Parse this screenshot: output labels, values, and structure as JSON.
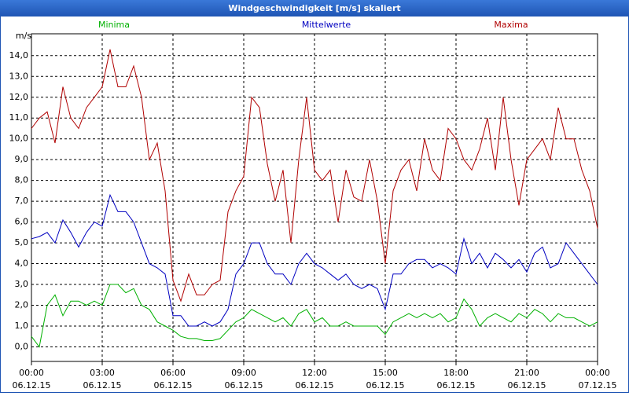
{
  "chart_data": {
    "type": "line",
    "title": "Windgeschwindigkeit [m/s] skaliert",
    "y_label": "m/s",
    "x": [
      0,
      20,
      40,
      60,
      80,
      100,
      120,
      140,
      160,
      180,
      200,
      220,
      240,
      260,
      280,
      300,
      320,
      340,
      360,
      380,
      400,
      420,
      440,
      460,
      480,
      500,
      520,
      540,
      560,
      580,
      600,
      620,
      640,
      660,
      680,
      700,
      720,
      740,
      760,
      780,
      800,
      820,
      840,
      860,
      880,
      900,
      920,
      940,
      960,
      980,
      1000,
      1020,
      1040,
      1060,
      1080,
      1100,
      1120,
      1140,
      1160,
      1180,
      1200,
      1220,
      1240,
      1260,
      1280,
      1300,
      1320,
      1340,
      1360,
      1380,
      1400,
      1420,
      1440
    ],
    "xlim": [
      0,
      1440
    ],
    "xticks": [
      {
        "value": 0,
        "label": "00:00"
      },
      {
        "value": 180,
        "label": "03:00"
      },
      {
        "value": 360,
        "label": "06:00"
      },
      {
        "value": 540,
        "label": "09:00"
      },
      {
        "value": 720,
        "label": "12:00"
      },
      {
        "value": 900,
        "label": "15:00"
      },
      {
        "value": 1080,
        "label": "18:00"
      },
      {
        "value": 1260,
        "label": "21:00"
      },
      {
        "value": 1440,
        "label": "00:00"
      }
    ],
    "xtick_dates": [
      "06.12.15",
      "06.12.15",
      "06.12.15",
      "06.12.15",
      "06.12.15",
      "06.12.15",
      "06.12.15",
      "06.12.15",
      "07.12.15"
    ],
    "ylim": [
      -0.7,
      15.05
    ],
    "yticks": [
      {
        "value": 0,
        "label": "0,0"
      },
      {
        "value": 1,
        "label": "1,0"
      },
      {
        "value": 2,
        "label": "2,0"
      },
      {
        "value": 3,
        "label": "3,0"
      },
      {
        "value": 4,
        "label": "4,0"
      },
      {
        "value": 5,
        "label": "5,0"
      },
      {
        "value": 6,
        "label": "6,0"
      },
      {
        "value": 7,
        "label": "7,0"
      },
      {
        "value": 8,
        "label": "8,0"
      },
      {
        "value": 9,
        "label": "9,0"
      },
      {
        "value": 10,
        "label": "10,0"
      },
      {
        "value": 11,
        "label": "11,0"
      },
      {
        "value": 12,
        "label": "12,0"
      },
      {
        "value": 13,
        "label": "13,0"
      },
      {
        "value": 14,
        "label": "14,0"
      }
    ],
    "grid": true,
    "series": [
      {
        "name": "Minima",
        "color": "#00b000",
        "values": [
          0.5,
          0.0,
          2.0,
          2.5,
          1.5,
          2.2,
          2.2,
          2.0,
          2.2,
          2.0,
          3.0,
          3.0,
          2.6,
          2.8,
          2.0,
          1.8,
          1.2,
          1.0,
          0.8,
          0.5,
          0.4,
          0.4,
          0.3,
          0.3,
          0.4,
          0.8,
          1.2,
          1.4,
          1.8,
          1.6,
          1.4,
          1.2,
          1.4,
          1.0,
          1.6,
          1.8,
          1.2,
          1.4,
          1.0,
          1.0,
          1.2,
          1.0,
          1.0,
          1.0,
          1.0,
          0.6,
          1.2,
          1.4,
          1.6,
          1.4,
          1.6,
          1.4,
          1.6,
          1.2,
          1.4,
          2.3,
          1.8,
          1.0,
          1.4,
          1.6,
          1.4,
          1.2,
          1.6,
          1.4,
          1.8,
          1.6,
          1.2,
          1.6,
          1.4,
          1.4,
          1.2,
          1.0,
          1.2
        ]
      },
      {
        "name": "Mittelwerte",
        "color": "#0000c0",
        "values": [
          5.2,
          5.3,
          5.5,
          5.0,
          6.1,
          5.5,
          4.8,
          5.5,
          6.0,
          5.8,
          7.3,
          6.5,
          6.5,
          6.0,
          5.0,
          4.0,
          3.8,
          3.5,
          1.5,
          1.5,
          1.0,
          1.0,
          1.2,
          1.0,
          1.2,
          1.8,
          3.5,
          4.0,
          5.0,
          5.0,
          4.0,
          3.5,
          3.5,
          3.0,
          4.0,
          4.5,
          4.0,
          3.8,
          3.5,
          3.2,
          3.5,
          3.0,
          2.8,
          3.0,
          2.8,
          1.8,
          3.5,
          3.5,
          4.0,
          4.2,
          4.2,
          3.8,
          4.0,
          3.8,
          3.5,
          5.2,
          4.0,
          4.5,
          3.8,
          4.5,
          4.2,
          3.8,
          4.2,
          3.6,
          4.5,
          4.8,
          3.8,
          4.0,
          5.0,
          4.5,
          4.0,
          3.5,
          3.0
        ]
      },
      {
        "name": "Maxima",
        "color": "#b00000",
        "values": [
          10.5,
          11.0,
          11.3,
          9.8,
          12.5,
          11.0,
          10.5,
          11.5,
          12.0,
          12.5,
          14.3,
          12.5,
          12.5,
          13.5,
          12.0,
          9.0,
          9.8,
          7.5,
          3.2,
          2.2,
          3.5,
          2.5,
          2.5,
          3.0,
          3.2,
          6.5,
          7.5,
          8.2,
          12.0,
          11.5,
          8.8,
          7.0,
          8.5,
          5.0,
          9.0,
          12.0,
          8.5,
          8.0,
          8.5,
          6.0,
          8.5,
          7.2,
          7.0,
          9.0,
          7.0,
          4.0,
          7.5,
          8.5,
          9.0,
          7.5,
          10.0,
          8.5,
          8.0,
          10.5,
          10.0,
          9.0,
          8.5,
          9.5,
          11.0,
          8.5,
          12.0,
          9.0,
          6.8,
          9.0,
          9.5,
          10.0,
          9.0,
          11.5,
          10.0,
          10.0,
          8.5,
          7.5,
          5.7
        ]
      }
    ]
  }
}
